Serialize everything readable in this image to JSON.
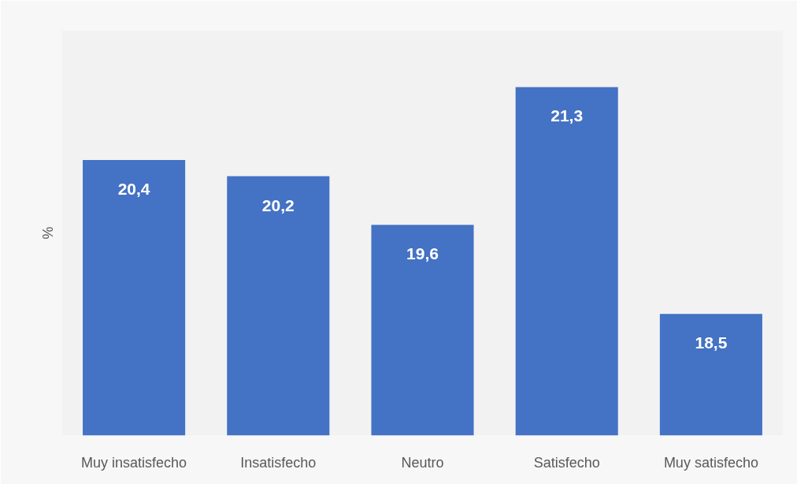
{
  "chart_data": {
    "type": "bar",
    "ylabel": "%",
    "categories": [
      "Muy insatisfecho",
      "Insatisfecho",
      "Neutro",
      "Satisfecho",
      "Muy satisfecho"
    ],
    "values": [
      20.4,
      20.2,
      19.6,
      21.3,
      18.5
    ],
    "value_labels": [
      "20,4",
      "20,2",
      "19,6",
      "21,3",
      "18,5"
    ],
    "color": "#4472c4",
    "ylim": [
      17,
      22
    ],
    "tick_labels": "x",
    "grid": false
  }
}
